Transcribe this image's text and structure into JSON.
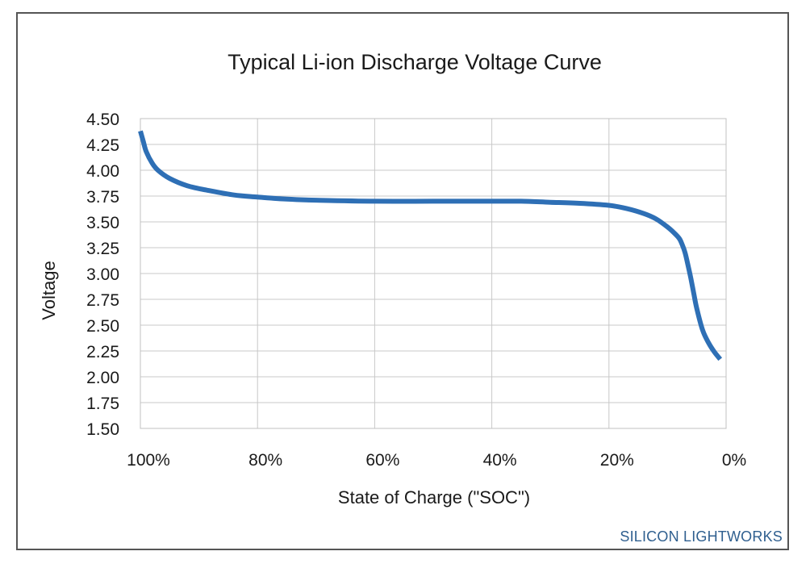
{
  "chart_data": {
    "type": "line",
    "title": "Typical Li-ion Discharge Voltage Curve",
    "xlabel": "State of Charge (\"SOC\")",
    "ylabel": "Voltage",
    "x_direction": "descending",
    "xlim": [
      100,
      0
    ],
    "ylim": [
      1.5,
      4.5
    ],
    "x_ticks": [
      100,
      80,
      60,
      40,
      20,
      0
    ],
    "x_tick_labels": [
      "100%",
      "80%",
      "60%",
      "40%",
      "20%",
      "0%"
    ],
    "y_ticks": [
      4.5,
      4.25,
      4.0,
      3.75,
      3.5,
      3.25,
      3.0,
      2.75,
      2.5,
      2.25,
      2.0,
      1.75,
      1.5
    ],
    "y_tick_labels": [
      "4.50",
      "4.25",
      "4.00",
      "3.75",
      "3.50",
      "3.25",
      "3.00",
      "2.75",
      "2.50",
      "2.25",
      "2.00",
      "1.75",
      "1.50"
    ],
    "grid": true,
    "legend": "none",
    "series": [
      {
        "color": "#2e6fb5",
        "x": [
          100,
          99.5,
          99,
          98,
          97,
          95,
          92,
          88,
          84,
          80,
          75,
          70,
          60,
          50,
          40,
          35,
          30,
          25,
          20,
          17,
          14,
          12,
          10,
          9,
          8,
          7.5,
          7,
          6.5,
          6,
          5.5,
          5,
          4,
          3,
          2,
          1
        ],
        "y": [
          4.38,
          4.28,
          4.18,
          4.07,
          4.0,
          3.92,
          3.85,
          3.8,
          3.76,
          3.74,
          3.72,
          3.71,
          3.7,
          3.7,
          3.7,
          3.7,
          3.69,
          3.68,
          3.66,
          3.63,
          3.58,
          3.53,
          3.45,
          3.4,
          3.34,
          3.28,
          3.2,
          3.08,
          2.95,
          2.8,
          2.66,
          2.45,
          2.33,
          2.24,
          2.17
        ]
      }
    ]
  },
  "brand": {
    "label": "SILICON LIGHTWORKS",
    "color": "#2f5f8f"
  }
}
